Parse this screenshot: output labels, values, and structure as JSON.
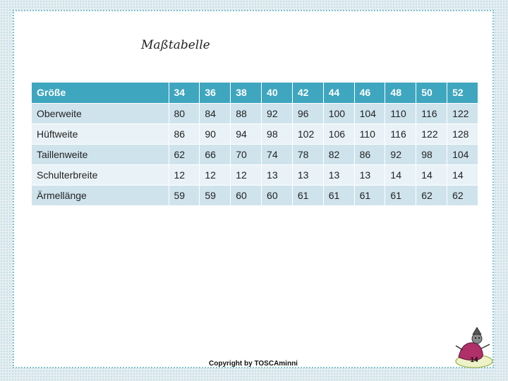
{
  "title": "Maßtabelle",
  "table": {
    "header": [
      "Größe",
      "34",
      "36",
      "38",
      "40",
      "42",
      "44",
      "46",
      "48",
      "50",
      "52"
    ],
    "rows": [
      [
        "Oberweite",
        "80",
        "84",
        "88",
        "92",
        "96",
        "100",
        "104",
        "110",
        "116",
        "122"
      ],
      [
        "Hüftweite",
        "86",
        "90",
        "94",
        "98",
        "102",
        "106",
        "110",
        "116",
        "122",
        "128"
      ],
      [
        "Taillenweite",
        "62",
        "66",
        "70",
        "74",
        "78",
        "82",
        "86",
        "92",
        "98",
        "104"
      ],
      [
        "Schulterbreite",
        "12",
        "12",
        "12",
        "13",
        "13",
        "13",
        "13",
        "14",
        "14",
        "14"
      ],
      [
        "Ärmellänge",
        "59",
        "59",
        "60",
        "60",
        "61",
        "61",
        "61",
        "61",
        "62",
        "62"
      ]
    ]
  },
  "footer": {
    "copyright": "Copyright by TOSCAminni",
    "page_number": "14"
  },
  "colors": {
    "header_bg": "#3fa6bf",
    "row_band_dark": "#cfe3ec",
    "row_band_light": "#e9f2f6",
    "frame_border": "#7cc3cf"
  },
  "icons": {
    "mascot": "cartoon-figure-icon"
  }
}
